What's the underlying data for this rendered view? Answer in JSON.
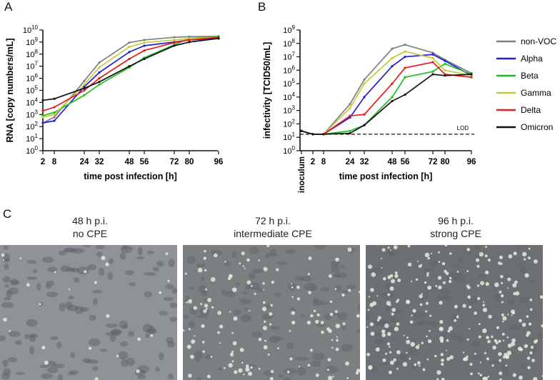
{
  "panels": {
    "a": "A",
    "b": "B",
    "c": "C"
  },
  "legend": [
    {
      "name": "non-VOC",
      "color": "#7f7f7f"
    },
    {
      "name": "Alpha",
      "color": "#1f1fd8"
    },
    {
      "name": "Beta",
      "color": "#1fbf1f"
    },
    {
      "name": "Gamma",
      "color": "#c8c83a"
    },
    {
      "name": "Delta",
      "color": "#e81c1c"
    },
    {
      "name": "Omicron",
      "color": "#111111"
    }
  ],
  "chart_data": [
    {
      "type": "line",
      "panel": "A",
      "xlabel": "time post infection [h]",
      "ylabel": "RNA [copy numbers/mL]",
      "x": [
        2,
        8,
        24,
        32,
        48,
        56,
        72,
        80,
        96
      ],
      "xticks": [
        "2",
        "8",
        "24",
        "32",
        "48",
        "56",
        "72",
        "80",
        "96"
      ],
      "y_scale": "log10",
      "ylim": [
        1,
        10000000000
      ],
      "yticks_exp": [
        0,
        1,
        2,
        3,
        4,
        5,
        6,
        7,
        8,
        9,
        10
      ],
      "series": [
        {
          "name": "non-VOC",
          "color": "#7f7f7f",
          "values": [
            200,
            600,
            600000,
            20000000,
            900000000,
            1500000000,
            2500000000,
            2800000000,
            3000000000
          ]
        },
        {
          "name": "Alpha",
          "color": "#1f1fd8",
          "values": [
            200,
            300,
            200000,
            3000000,
            150000000,
            500000000,
            1000000000,
            1500000000,
            2000000000
          ]
        },
        {
          "name": "Beta",
          "color": "#1fbf1f",
          "values": [
            800,
            1500,
            40000,
            300000,
            8000000,
            50000000,
            600000000,
            2000000000,
            3000000000
          ]
        },
        {
          "name": "Gamma",
          "color": "#c8c83a",
          "values": [
            600,
            1000,
            300000,
            8000000,
            400000000,
            900000000,
            1500000000,
            2000000000,
            2500000000
          ]
        },
        {
          "name": "Delta",
          "color": "#e81c1c",
          "values": [
            2000,
            4000,
            100000,
            1000000,
            40000000,
            200000000,
            900000000,
            1500000000,
            2500000000
          ]
        },
        {
          "name": "Omicron",
          "color": "#111111",
          "values": [
            15000,
            20000,
            150000,
            500000,
            10000000,
            40000000,
            500000000,
            1000000000,
            2000000000
          ]
        }
      ]
    },
    {
      "type": "line",
      "panel": "B",
      "xlabel": "time post infection [h]",
      "ylabel": "infectivity [TCID50/mL]",
      "x": [
        "inoculum",
        2,
        8,
        24,
        32,
        48,
        56,
        72,
        80,
        96
      ],
      "xticks": [
        "inoculum",
        "2",
        "8",
        "24",
        "32",
        "48",
        "56",
        "72",
        "80",
        "96"
      ],
      "y_scale": "log10",
      "ylim": [
        1,
        1000000000
      ],
      "yticks_exp": [
        0,
        1,
        2,
        3,
        4,
        5,
        6,
        7,
        8,
        9
      ],
      "reference_line": {
        "label": "LOD",
        "value": 17
      },
      "series": [
        {
          "name": "non-VOC",
          "color": "#7f7f7f",
          "values": [
            30,
            17,
            17,
            3000,
            200000,
            40000000,
            80000000,
            20000000,
            6000000,
            600000
          ]
        },
        {
          "name": "Alpha",
          "color": "#1f1fd8",
          "values": [
            30,
            17,
            17,
            300,
            10000,
            2000000,
            10000000,
            15000000,
            5000000,
            400000
          ]
        },
        {
          "name": "Beta",
          "color": "#1fbf1f",
          "values": [
            30,
            17,
            17,
            30,
            80,
            10000,
            300000,
            800000,
            3000000,
            500000
          ]
        },
        {
          "name": "Gamma",
          "color": "#c8c83a",
          "values": [
            30,
            17,
            17,
            1500,
            100000,
            8000000,
            25000000,
            8000000,
            1000000,
            400000
          ]
        },
        {
          "name": "Delta",
          "color": "#e81c1c",
          "values": [
            30,
            17,
            17,
            400,
            500,
            100000,
            1500000,
            4000000,
            500000,
            300000
          ]
        },
        {
          "name": "Omicron",
          "color": "#111111",
          "values": [
            30,
            17,
            17,
            20,
            80,
            5000,
            15000,
            500000,
            400000,
            500000
          ]
        }
      ]
    }
  ],
  "micrographs": [
    {
      "line1": "48 h p.i.",
      "line2": "no CPE"
    },
    {
      "line1": "72 h p.i.",
      "line2": "intermediate CPE"
    },
    {
      "line1": "96 h p.i.",
      "line2": "strong CPE"
    }
  ]
}
